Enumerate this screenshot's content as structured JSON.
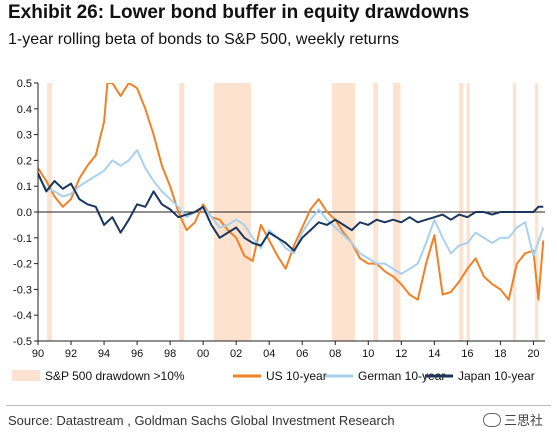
{
  "chart_data": {
    "type": "line",
    "title": "Exhibit 26: Lower bond buffer in equity drawdowns",
    "subtitle": "1-year rolling beta of bonds to S&P 500, weekly returns",
    "xlim": [
      1990,
      2020.7
    ],
    "ylim": [
      -0.5,
      0.5
    ],
    "xticks": [
      1990,
      1992,
      1994,
      1996,
      1998,
      2000,
      2002,
      2004,
      2006,
      2008,
      2010,
      2012,
      2014,
      2016,
      2018,
      2020
    ],
    "xtick_labels": [
      "90",
      "92",
      "94",
      "96",
      "98",
      "00",
      "02",
      "04",
      "06",
      "08",
      "10",
      "12",
      "14",
      "16",
      "18",
      "20"
    ],
    "yticks": [
      -0.5,
      -0.4,
      -0.3,
      -0.2,
      -0.1,
      0.0,
      0.1,
      0.2,
      0.3,
      0.4,
      0.5
    ],
    "ytick_labels": [
      "-0.5",
      "-0.4",
      "-0.3",
      "-0.2",
      "-0.1",
      "0.0",
      "0.1",
      "0.2",
      "0.3",
      "0.4",
      "0.5"
    ],
    "drawdown_periods": [
      [
        1990.55,
        1990.85
      ],
      [
        1998.55,
        1998.85
      ],
      [
        2000.65,
        2002.9
      ],
      [
        2007.8,
        2009.2
      ],
      [
        2010.3,
        2010.6
      ],
      [
        2011.5,
        2011.95
      ],
      [
        2015.5,
        2015.75
      ],
      [
        2015.95,
        2016.15
      ],
      [
        2018.75,
        2018.95
      ],
      [
        2020.1,
        2020.3
      ]
    ],
    "legend": [
      {
        "name": "S&P 500 drawdown >10%",
        "kind": "band",
        "color": "#fde3cf"
      },
      {
        "name": "US 10-year",
        "kind": "line",
        "color": "#f28024"
      },
      {
        "name": "German 10-year",
        "kind": "line",
        "color": "#a9d1ee"
      },
      {
        "name": "Japan 10-year",
        "kind": "line",
        "color": "#1b365d"
      }
    ],
    "legend_placement": "bottom",
    "series": [
      {
        "name": "US 10-year",
        "color": "#f28024",
        "x": [
          1990.0,
          1990.5,
          1991.0,
          1991.5,
          1992.0,
          1992.5,
          1993.0,
          1993.5,
          1994.0,
          1994.2,
          1994.5,
          1995.0,
          1995.5,
          1996.0,
          1996.5,
          1997.0,
          1997.5,
          1998.0,
          1998.5,
          1999.0,
          1999.5,
          2000.0,
          2000.5,
          2001.0,
          2001.5,
          2002.0,
          2002.5,
          2003.0,
          2003.5,
          2004.0,
          2004.5,
          2005.0,
          2005.5,
          2006.0,
          2006.5,
          2007.0,
          2007.5,
          2008.0,
          2008.5,
          2009.0,
          2009.5,
          2010.0,
          2010.5,
          2011.0,
          2011.5,
          2012.0,
          2012.5,
          2013.0,
          2013.5,
          2014.0,
          2014.5,
          2015.0,
          2015.5,
          2016.0,
          2016.5,
          2017.0,
          2017.5,
          2018.0,
          2018.5,
          2019.0,
          2019.5,
          2020.0,
          2020.3,
          2020.6
        ],
        "y": [
          0.17,
          0.12,
          0.06,
          0.02,
          0.05,
          0.13,
          0.18,
          0.22,
          0.35,
          0.5,
          0.5,
          0.45,
          0.5,
          0.48,
          0.4,
          0.3,
          0.18,
          0.1,
          0.0,
          -0.07,
          -0.04,
          0.03,
          -0.02,
          -0.03,
          -0.07,
          -0.1,
          -0.17,
          -0.19,
          -0.05,
          -0.11,
          -0.17,
          -0.22,
          -0.13,
          -0.06,
          0.01,
          0.05,
          0.0,
          -0.03,
          -0.08,
          -0.12,
          -0.18,
          -0.2,
          -0.2,
          -0.23,
          -0.25,
          -0.28,
          -0.32,
          -0.34,
          -0.2,
          -0.09,
          -0.32,
          -0.31,
          -0.27,
          -0.22,
          -0.18,
          -0.25,
          -0.28,
          -0.3,
          -0.34,
          -0.2,
          -0.16,
          -0.15,
          -0.34,
          -0.11
        ]
      },
      {
        "name": "German 10-year",
        "color": "#a9d1ee",
        "x": [
          1990.0,
          1990.5,
          1991.0,
          1991.5,
          1992.0,
          1992.5,
          1993.0,
          1993.5,
          1994.0,
          1994.5,
          1995.0,
          1995.5,
          1996.0,
          1996.5,
          1997.0,
          1997.5,
          1998.0,
          1998.5,
          1999.0,
          1999.5,
          2000.0,
          2000.5,
          2001.0,
          2001.5,
          2002.0,
          2002.5,
          2003.0,
          2003.5,
          2004.0,
          2004.5,
          2005.0,
          2005.5,
          2006.0,
          2006.5,
          2007.0,
          2007.5,
          2008.0,
          2008.5,
          2009.0,
          2009.5,
          2010.0,
          2010.5,
          2011.0,
          2011.5,
          2012.0,
          2012.5,
          2013.0,
          2013.5,
          2014.0,
          2014.5,
          2015.0,
          2015.5,
          2016.0,
          2016.5,
          2017.0,
          2017.5,
          2018.0,
          2018.5,
          2019.0,
          2019.5,
          2020.0,
          2020.6
        ],
        "y": [
          0.14,
          0.09,
          0.08,
          0.06,
          0.07,
          0.1,
          0.12,
          0.14,
          0.16,
          0.2,
          0.18,
          0.2,
          0.24,
          0.17,
          0.12,
          0.08,
          0.05,
          0.02,
          -0.02,
          0.0,
          0.02,
          -0.02,
          -0.06,
          -0.05,
          -0.03,
          -0.05,
          -0.1,
          -0.14,
          -0.07,
          -0.1,
          -0.14,
          -0.16,
          -0.08,
          -0.03,
          0.01,
          -0.03,
          -0.06,
          -0.09,
          -0.12,
          -0.16,
          -0.18,
          -0.2,
          -0.2,
          -0.22,
          -0.24,
          -0.22,
          -0.2,
          -0.12,
          -0.03,
          -0.1,
          -0.16,
          -0.13,
          -0.12,
          -0.08,
          -0.1,
          -0.12,
          -0.1,
          -0.1,
          -0.06,
          -0.04,
          -0.17,
          -0.06
        ]
      },
      {
        "name": "Japan 10-year",
        "color": "#1b365d",
        "x": [
          1990.0,
          1990.5,
          1991.0,
          1991.5,
          1992.0,
          1992.5,
          1993.0,
          1993.5,
          1994.0,
          1994.5,
          1995.0,
          1995.5,
          1996.0,
          1996.5,
          1997.0,
          1997.5,
          1998.0,
          1998.5,
          1999.0,
          1999.5,
          2000.0,
          2000.5,
          2001.0,
          2001.5,
          2002.0,
          2002.5,
          2003.0,
          2003.5,
          2004.0,
          2004.5,
          2005.0,
          2005.5,
          2006.0,
          2006.5,
          2007.0,
          2007.5,
          2008.0,
          2008.5,
          2009.0,
          2009.5,
          2010.0,
          2010.5,
          2011.0,
          2011.5,
          2012.0,
          2012.5,
          2013.0,
          2013.5,
          2014.0,
          2014.5,
          2015.0,
          2015.5,
          2016.0,
          2016.5,
          2017.0,
          2017.5,
          2018.0,
          2018.5,
          2019.0,
          2019.5,
          2020.0,
          2020.3,
          2020.6
        ],
        "y": [
          0.15,
          0.08,
          0.12,
          0.09,
          0.11,
          0.05,
          0.03,
          0.02,
          -0.05,
          -0.02,
          -0.08,
          -0.03,
          0.03,
          0.02,
          0.08,
          0.03,
          0.01,
          -0.02,
          -0.01,
          0.0,
          0.02,
          -0.05,
          -0.1,
          -0.08,
          -0.06,
          -0.1,
          -0.12,
          -0.13,
          -0.08,
          -0.1,
          -0.12,
          -0.15,
          -0.1,
          -0.07,
          -0.04,
          -0.05,
          -0.03,
          -0.05,
          -0.07,
          -0.04,
          -0.05,
          -0.03,
          -0.04,
          -0.03,
          -0.04,
          -0.02,
          -0.04,
          -0.03,
          -0.02,
          -0.01,
          -0.03,
          -0.01,
          -0.02,
          0.0,
          0.0,
          -0.01,
          0.0,
          0.0,
          0.0,
          0.0,
          0.0,
          0.02,
          0.02
        ]
      }
    ],
    "source": "Source: Datastream , Goldman Sachs Global Investment Research",
    "brand_mark": "三思社"
  }
}
